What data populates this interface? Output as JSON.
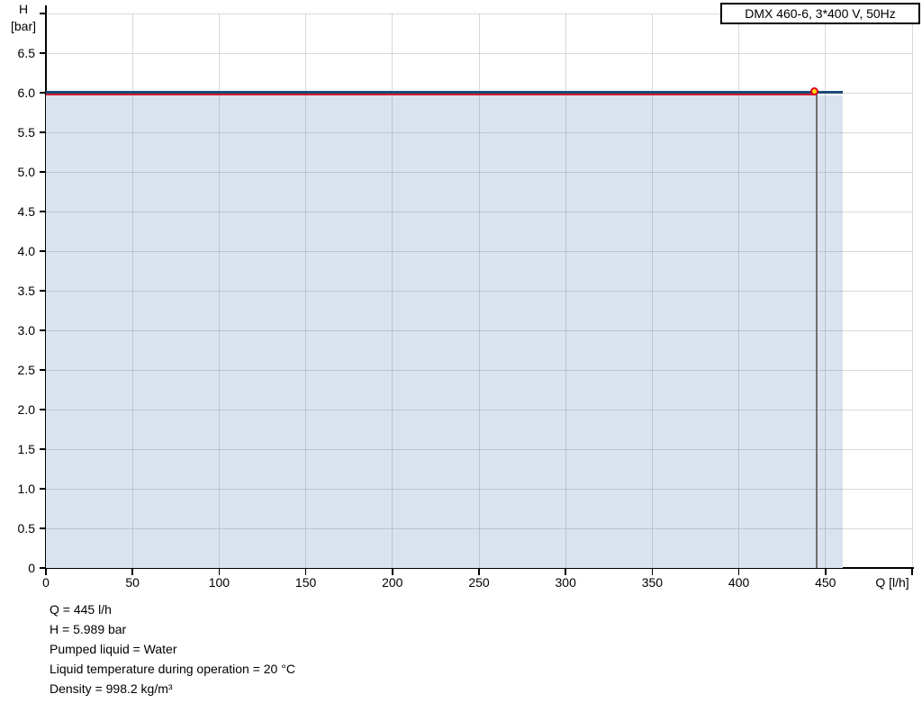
{
  "legend": {
    "label": "DMX 460-6, 3*400 V, 50Hz"
  },
  "axes": {
    "y_title_line1": "H",
    "y_title_line2": "[bar]",
    "x_title": "Q [l/h]"
  },
  "footer": {
    "flow": "Q = 445 l/h",
    "head": "H = 5.989 bar",
    "pumped_liquid": "Pumped liquid = Water",
    "liquid_temperature": "Liquid temperature during operation = 20 °C",
    "density": "Density = 998.2 kg/m³"
  },
  "chart_data": {
    "type": "line",
    "title": "DMX 460-6, 3*400 V, 50Hz",
    "xlabel": "Q [l/h]",
    "ylabel": "H [bar]",
    "xlim": [
      0,
      500
    ],
    "ylim": [
      0,
      7
    ],
    "grid": true,
    "legend_position": "top-right",
    "x_ticks": [
      {
        "v": 0,
        "label": "0"
      },
      {
        "v": 50,
        "label": "50"
      },
      {
        "v": 100,
        "label": "100"
      },
      {
        "v": 150,
        "label": "150"
      },
      {
        "v": 200,
        "label": "200"
      },
      {
        "v": 250,
        "label": "250"
      },
      {
        "v": 300,
        "label": "300"
      },
      {
        "v": 350,
        "label": "350"
      },
      {
        "v": 400,
        "label": "400"
      },
      {
        "v": 450,
        "label": "450"
      },
      {
        "v": 500,
        "label": ""
      }
    ],
    "y_ticks": [
      {
        "v": 0,
        "label": "0"
      },
      {
        "v": 0.5,
        "label": "0.5"
      },
      {
        "v": 1,
        "label": "1.0"
      },
      {
        "v": 1.5,
        "label": "1.5"
      },
      {
        "v": 2,
        "label": "2.0"
      },
      {
        "v": 2.5,
        "label": "2.5"
      },
      {
        "v": 3,
        "label": "3.0"
      },
      {
        "v": 3.5,
        "label": "3.5"
      },
      {
        "v": 4,
        "label": "4.0"
      },
      {
        "v": 4.5,
        "label": "4.5"
      },
      {
        "v": 5,
        "label": "5.0"
      },
      {
        "v": 5.5,
        "label": "5.5"
      },
      {
        "v": 6,
        "label": "6.0"
      },
      {
        "v": 6.5,
        "label": "6.5"
      },
      {
        "v": 7,
        "label": ""
      }
    ],
    "series": [
      {
        "name": "pump-curve",
        "color": "#1b4a78",
        "width": 3,
        "dy": -1,
        "points": [
          [
            0,
            6.0
          ],
          [
            460,
            6.0
          ]
        ]
      },
      {
        "name": "duty-head-line",
        "color": "#d01f30",
        "width": 2,
        "dy": 1.5,
        "points": [
          [
            0,
            5.989
          ],
          [
            445,
            5.989
          ]
        ]
      }
    ],
    "area_fill": {
      "color": "#d9e2ee",
      "x_from": 0,
      "x_to": 460,
      "y_from": 0,
      "y_to": 5.97
    },
    "duty_point": {
      "q": 445,
      "h": 5.989,
      "marker_fill": "#ffdf00",
      "marker_ring": "#e30022",
      "drop_line_color": "#6e6e6e"
    },
    "colors": {
      "grid": "#d6d6d6",
      "axis": "#000000",
      "background": "#ffffff"
    }
  }
}
